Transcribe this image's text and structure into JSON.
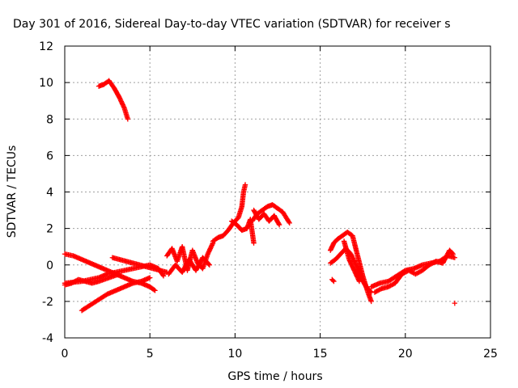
{
  "chart_data": {
    "type": "scatter",
    "title": "Day 301 of 2016, Sidereal Day-to-day VTEC variation (SDTVAR) for receiver s",
    "xlabel": "GPS time / hours",
    "ylabel": "SDTVAR / TECUs",
    "xlim": [
      0,
      25
    ],
    "ylim": [
      -4,
      12
    ],
    "xticks": [
      0,
      5,
      10,
      15,
      20,
      25
    ],
    "yticks": [
      -4,
      -2,
      0,
      2,
      4,
      6,
      8,
      10,
      12
    ],
    "grid": true,
    "marker": "+",
    "color": "#ff0000",
    "segments": [
      {
        "x": [
          2.0,
          2.3,
          2.6,
          2.9,
          3.2,
          3.5,
          3.7
        ],
        "y": [
          9.8,
          9.9,
          10.1,
          9.7,
          9.2,
          8.6,
          8.0
        ]
      },
      {
        "x": [
          0.0,
          0.5,
          1.0,
          1.5,
          2.0,
          2.5,
          3.0,
          3.5,
          4.0,
          4.5,
          5.0,
          5.5,
          5.8
        ],
        "y": [
          -1.0,
          -0.95,
          -0.9,
          -0.8,
          -0.7,
          -0.5,
          -0.4,
          -0.3,
          -0.2,
          -0.1,
          0.0,
          -0.2,
          -0.6
        ]
      },
      {
        "x": [
          0.0,
          0.5,
          1.0,
          1.5,
          2.0,
          2.5,
          3.0,
          3.5,
          4.0,
          4.5,
          5.0,
          5.3
        ],
        "y": [
          0.6,
          0.5,
          0.3,
          0.1,
          -0.1,
          -0.3,
          -0.5,
          -0.7,
          -0.9,
          -1.0,
          -1.2,
          -1.4
        ]
      },
      {
        "x": [
          1.0,
          1.5,
          2.0,
          2.5,
          3.0,
          3.5,
          4.0,
          4.5,
          5.0
        ],
        "y": [
          -2.5,
          -2.2,
          -1.9,
          -1.6,
          -1.4,
          -1.2,
          -1.0,
          -0.9,
          -0.7
        ]
      },
      {
        "x": [
          2.8,
          3.2,
          3.6,
          4.0,
          4.4,
          4.8,
          5.2,
          5.6,
          6.0
        ],
        "y": [
          0.4,
          0.3,
          0.2,
          0.1,
          0.0,
          -0.1,
          -0.2,
          -0.3,
          -0.4
        ]
      },
      {
        "x": [
          0.0,
          0.4,
          0.8,
          1.2,
          1.6,
          2.0,
          2.6,
          3.2
        ],
        "y": [
          -1.1,
          -1.0,
          -0.8,
          -0.9,
          -1.0,
          -0.9,
          -0.7,
          -0.5
        ]
      },
      {
        "x": [
          6.0,
          6.3,
          6.6,
          6.9,
          7.2,
          7.5,
          7.8,
          8.1,
          8.4,
          8.7
        ],
        "y": [
          0.5,
          0.9,
          0.2,
          1.0,
          -0.3,
          0.8,
          0.1,
          -0.2,
          0.6,
          1.2
        ]
      },
      {
        "x": [
          6.1,
          6.5,
          6.9,
          7.3,
          7.7,
          8.1,
          8.5
        ],
        "y": [
          -0.5,
          0.0,
          -0.4,
          0.3,
          -0.3,
          0.4,
          0.0
        ]
      },
      {
        "x": [
          8.7,
          9.0,
          9.3,
          9.6,
          9.9,
          10.2,
          10.4,
          10.5,
          10.6
        ],
        "y": [
          1.3,
          1.5,
          1.6,
          1.9,
          2.3,
          2.6,
          3.2,
          4.0,
          4.4
        ]
      },
      {
        "x": [
          9.8,
          10.1,
          10.4,
          10.7,
          10.9,
          11.1
        ],
        "y": [
          2.4,
          2.2,
          1.9,
          2.0,
          2.5,
          1.2
        ]
      },
      {
        "x": [
          11.0,
          11.3,
          11.6,
          11.9,
          12.2,
          12.5,
          12.8,
          13.0,
          13.2
        ],
        "y": [
          2.4,
          2.8,
          3.0,
          3.2,
          3.3,
          3.1,
          2.9,
          2.6,
          2.3
        ]
      },
      {
        "x": [
          11.1,
          11.4,
          11.7,
          12.0,
          12.3,
          12.6
        ],
        "y": [
          3.0,
          2.5,
          2.8,
          2.4,
          2.7,
          2.2
        ]
      },
      {
        "x": [
          15.6,
          15.8,
          16.0,
          16.3,
          16.6,
          16.9,
          17.2,
          17.5,
          17.8,
          18.0
        ],
        "y": [
          0.8,
          1.2,
          1.4,
          1.6,
          1.8,
          1.6,
          0.5,
          -0.6,
          -1.5,
          -2.0
        ]
      },
      {
        "x": [
          15.6,
          15.9,
          16.2,
          16.5,
          16.8,
          17.1,
          17.4,
          17.7,
          18.0
        ],
        "y": [
          0.1,
          0.3,
          0.6,
          0.9,
          0.6,
          0.0,
          -0.7,
          -1.2,
          -1.5
        ]
      },
      {
        "x": [
          16.4,
          16.7,
          17.0,
          17.3
        ],
        "y": [
          1.3,
          0.3,
          -0.3,
          -0.9
        ]
      },
      {
        "x": [
          15.7,
          15.8
        ],
        "y": [
          -0.8,
          -0.9
        ]
      },
      {
        "x": [
          18.0,
          18.5,
          19.0,
          19.5,
          20.0,
          20.5,
          21.0,
          21.5,
          22.0,
          22.5,
          22.9
        ],
        "y": [
          -1.2,
          -1.0,
          -0.9,
          -0.6,
          -0.3,
          -0.2,
          0.0,
          0.1,
          0.2,
          0.5,
          0.4
        ]
      },
      {
        "x": [
          18.2,
          18.6,
          19.0,
          19.4,
          19.8,
          20.2,
          20.6,
          21.0,
          21.4,
          21.8,
          22.2,
          22.6,
          22.8
        ],
        "y": [
          -1.5,
          -1.3,
          -1.2,
          -1.0,
          -0.5,
          -0.3,
          -0.5,
          -0.3,
          0.0,
          0.2,
          0.1,
          0.8,
          0.6
        ]
      },
      {
        "x": [
          22.9
        ],
        "y": [
          -2.1
        ]
      }
    ]
  }
}
